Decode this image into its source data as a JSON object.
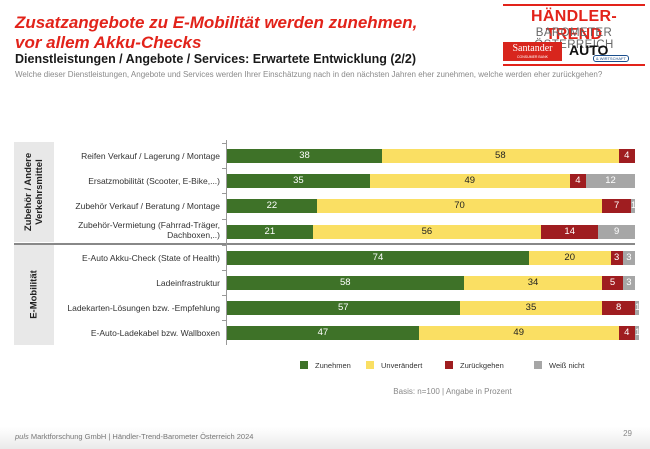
{
  "header": {
    "title_line1": "Zusatzangebote zu E-Mobilität werden zunehmen,",
    "title_line2": "vor allem Akku-Checks",
    "subtitle": "Dienstleistungen / Angebote / Services: Erwartete Entwicklung (2/2)",
    "question": "Welche dieser Dienstleistungen, Angebote und Services werden Ihrer Einschätzung nach in den nächsten Jahren eher zunehmen, welche werden eher zurückgehen?"
  },
  "logo": {
    "brand": "HÄNDLER-TREND",
    "sub": "BAROMETER ÖSTERREICH",
    "sponsor1": "Santander",
    "sponsor1_sub": "CONSUMER BANK",
    "sponsor2": "AUTO",
    "sponsor2_sub": "& WIRTSCHAFT",
    "accent": "#e2231a"
  },
  "chart_data": {
    "type": "bar",
    "orientation": "horizontal",
    "stacked": true,
    "title": "Dienstleistungen / Angebote / Services: Erwartete Entwicklung (2/2)",
    "xlabel": "",
    "ylabel": "",
    "xlim": [
      0,
      100
    ],
    "grid": false,
    "legend_position": "bottom",
    "groups": [
      {
        "name": "Zubehör / Andere Verkehrsmittel",
        "categories": [
          0,
          1,
          2,
          3
        ]
      },
      {
        "name": "E-Mobilität",
        "categories": [
          4,
          5,
          6,
          7
        ]
      }
    ],
    "categories": [
      "Reifen Verkauf / Lagerung / Montage",
      "Ersatzmobilität (Scooter, E-Bike,...)",
      "Zubehör Verkauf / Beratung / Montage",
      "Zubehör-Vermietung (Fahrrad-Träger, Dachboxen,..)",
      "E-Auto Akku-Check (State of Health)",
      "Ladeinfrastruktur",
      "Ladekarten-Lösungen bzw. -Empfehlung",
      "E-Auto-Ladekabel bzw. Wallboxen"
    ],
    "series": [
      {
        "name": "Zunehmen",
        "color": "#3e7228",
        "label_color": "#ffffff",
        "values": [
          38,
          35,
          22,
          21,
          74,
          58,
          57,
          47
        ]
      },
      {
        "name": "Unverändert",
        "color": "#fadf63",
        "label_color": "#222222",
        "values": [
          58,
          49,
          70,
          56,
          20,
          34,
          35,
          49
        ]
      },
      {
        "name": "Zurückgehen",
        "color": "#9f1d20",
        "label_color": "#ffffff",
        "values": [
          4,
          4,
          7,
          14,
          3,
          5,
          8,
          4
        ]
      },
      {
        "name": "Weiß nicht",
        "color": "#a6a6a6",
        "label_color": "#ffffff",
        "values": [
          0,
          12,
          1,
          9,
          3,
          3,
          1,
          1
        ]
      }
    ],
    "basis_note": "Basis: n=100 | Angabe in Prozent"
  },
  "footer": {
    "brand_italic": "puls",
    "text": " Marktforschung GmbH | Händler-Trend-Barometer Österreich 2024",
    "page_number": "29"
  }
}
